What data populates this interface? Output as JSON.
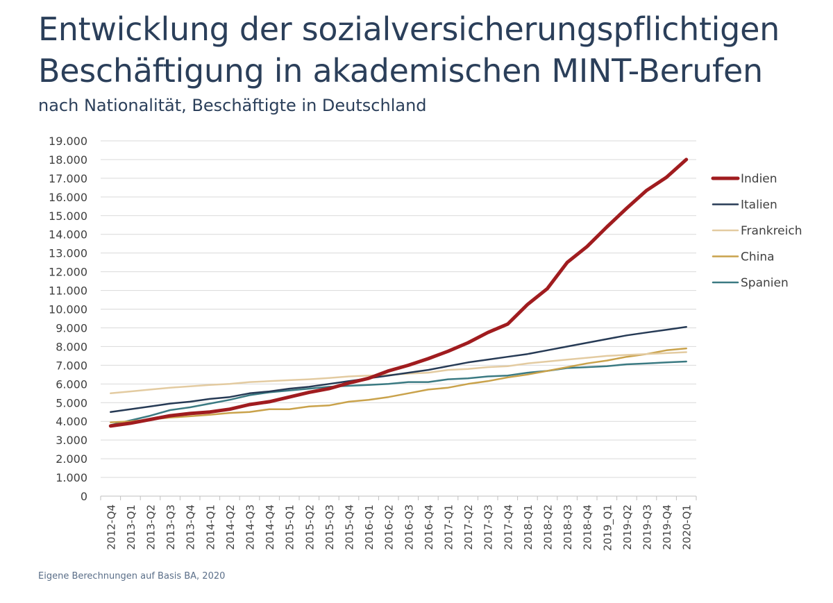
{
  "title_line1": "Entwicklung der sozialversicherungspflichtigen",
  "title_line2": "Beschäftigung in akademischen MINT-Berufen",
  "subtitle": "nach Nationalität, Beschäftigte in Deutschland",
  "source": "Eigene Berechnungen auf Basis BA, 2020",
  "chart_data": {
    "type": "line",
    "title": "Entwicklung der sozialversicherungspflichtigen Beschäftigung in akademischen MINT-Berufen",
    "subtitle": "nach Nationalität, Beschäftigte in Deutschland",
    "xlabel": "",
    "ylabel": "",
    "ylim": [
      0,
      19000
    ],
    "yticks": [
      0,
      1000,
      2000,
      3000,
      4000,
      5000,
      6000,
      7000,
      8000,
      9000,
      10000,
      11000,
      12000,
      13000,
      14000,
      15000,
      16000,
      17000,
      18000,
      19000
    ],
    "ytick_labels": [
      "0",
      "1.000",
      "2.000",
      "3.000",
      "4.000",
      "5.000",
      "6.000",
      "7.000",
      "8.000",
      "9.000",
      "10.000",
      "11.000",
      "12.000",
      "13.000",
      "14.000",
      "15.000",
      "16.000",
      "17.000",
      "18.000",
      "19.000"
    ],
    "grid": true,
    "legend_position": "right",
    "categories": [
      "2012-Q4",
      "2013-Q1",
      "2013-Q2",
      "2013-Q3",
      "2013-Q4",
      "2014-Q1",
      "2014-Q2",
      "2014-Q3",
      "2014-Q4",
      "2015-Q1",
      "2015-Q2",
      "2015-Q3",
      "2015-Q4",
      "2016-Q1",
      "2016-Q2",
      "2016-Q3",
      "2016-Q4",
      "2017-Q1",
      "2017-Q2",
      "2017-Q3",
      "2017-Q4",
      "2018-Q1",
      "2018-Q2",
      "2018-Q3",
      "2018-Q4",
      "2019_Q1",
      "2019-Q2",
      "2019-Q3",
      "2019-Q4",
      "2020-Q1"
    ],
    "series": [
      {
        "name": "Indien",
        "color": "#a01c1f",
        "width": 5,
        "values": [
          3750,
          3900,
          4100,
          4300,
          4420,
          4500,
          4650,
          4900,
          5050,
          5300,
          5550,
          5750,
          6050,
          6300,
          6700,
          7000,
          7350,
          7750,
          8200,
          8750,
          9200,
          10250,
          11100,
          12500,
          13350,
          14400,
          15400,
          16350,
          17050,
          18000
        ]
      },
      {
        "name": "Italien",
        "color": "#263a55",
        "width": 2.5,
        "values": [
          4500,
          4650,
          4800,
          4950,
          5050,
          5200,
          5300,
          5500,
          5600,
          5750,
          5850,
          6000,
          6150,
          6300,
          6450,
          6600,
          6750,
          6950,
          7150,
          7300,
          7450,
          7600,
          7800,
          8000,
          8200,
          8400,
          8600,
          8750,
          8900,
          9050
        ]
      },
      {
        "name": "Frankreich",
        "color": "#e3cba1",
        "width": 2.5,
        "values": [
          5500,
          5600,
          5700,
          5800,
          5870,
          5950,
          6000,
          6100,
          6150,
          6200,
          6250,
          6320,
          6400,
          6450,
          6480,
          6550,
          6600,
          6750,
          6800,
          6900,
          6950,
          7100,
          7200,
          7300,
          7400,
          7500,
          7550,
          7600,
          7650,
          7700
        ]
      },
      {
        "name": "China",
        "color": "#c9a24b",
        "width": 2.5,
        "values": [
          3950,
          4000,
          4100,
          4200,
          4270,
          4350,
          4450,
          4500,
          4650,
          4650,
          4800,
          4850,
          5050,
          5150,
          5300,
          5500,
          5700,
          5800,
          6000,
          6150,
          6350,
          6500,
          6700,
          6900,
          7100,
          7250,
          7450,
          7600,
          7800,
          7900
        ]
      },
      {
        "name": "Spanien",
        "color": "#3b7a82",
        "width": 2.5,
        "values": [
          3800,
          4050,
          4300,
          4600,
          4750,
          4950,
          5150,
          5400,
          5550,
          5650,
          5750,
          5850,
          5900,
          5950,
          6000,
          6100,
          6100,
          6250,
          6300,
          6400,
          6450,
          6600,
          6700,
          6850,
          6900,
          6950,
          7050,
          7100,
          7150,
          7200
        ]
      }
    ]
  }
}
